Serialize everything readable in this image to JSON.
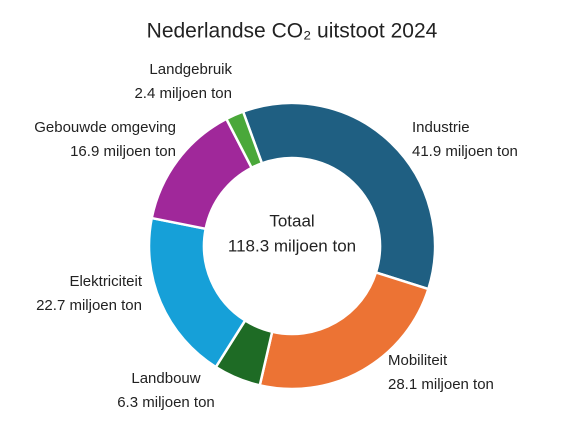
{
  "chart_data": {
    "type": "donut",
    "title": "Nederlandse CO₂ uitstoot 2024",
    "categories": [
      "Industrie",
      "Mobiliteit",
      "Landbouw",
      "Elektriciteit",
      "Gebouwde omgeving",
      "Landgebruik"
    ],
    "values": [
      41.9,
      28.1,
      6.3,
      22.7,
      16.9,
      2.4
    ],
    "value_labels": [
      "41.9 miljoen ton",
      "28.1 miljoen ton",
      "6.3 miljoen ton",
      "22.7 miljoen ton",
      "16.9 miljoen ton",
      "2.4 miljoen ton"
    ],
    "colors": [
      "#1f5f82",
      "#ec7334",
      "#1e6b25",
      "#16a0d8",
      "#a0289a",
      "#4aa83a"
    ],
    "center_text": [
      "Totaal",
      "118.3 miljoen ton"
    ]
  }
}
